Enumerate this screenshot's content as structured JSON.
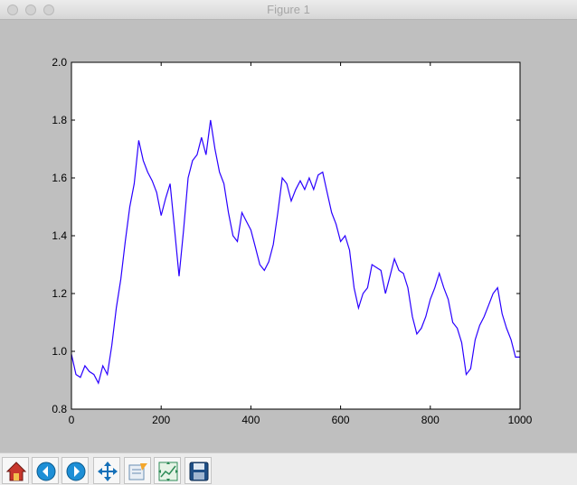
{
  "window": {
    "title": "Figure 1"
  },
  "toolbar": {
    "buttons": [
      {
        "name": "home-button",
        "icon": "home-icon"
      },
      {
        "name": "back-button",
        "icon": "back-arrow-icon"
      },
      {
        "name": "forward-button",
        "icon": "forward-arrow-icon"
      },
      {
        "name": "pan-button",
        "icon": "move-icon"
      },
      {
        "name": "zoom-button",
        "icon": "zoom-rect-icon"
      },
      {
        "name": "configure-subplots-button",
        "icon": "subplots-icon"
      },
      {
        "name": "save-button",
        "icon": "floppy-disk-icon"
      }
    ]
  },
  "colors": {
    "line": "#2a00ff",
    "figure_bg": "#bfbfbf",
    "axes_bg": "#ffffff"
  },
  "chart_data": {
    "type": "line",
    "xlim": [
      0,
      1000
    ],
    "ylim": [
      0.8,
      2.0
    ],
    "xticks": [
      "0",
      "200",
      "400",
      "600",
      "800",
      "1000"
    ],
    "yticks": [
      "0.8",
      "1.0",
      "1.2",
      "1.4",
      "1.6",
      "1.8",
      "2.0"
    ],
    "grid": false,
    "series": [
      {
        "x": [
          0,
          10,
          20,
          30,
          40,
          50,
          60,
          70,
          80,
          90,
          100,
          110,
          120,
          130,
          140,
          150,
          160,
          170,
          180,
          190,
          200,
          210,
          220,
          230,
          240,
          250,
          260,
          270,
          280,
          290,
          300,
          310,
          320,
          330,
          340,
          350,
          360,
          370,
          380,
          390,
          400,
          410,
          420,
          430,
          440,
          450,
          460,
          470,
          480,
          490,
          500,
          510,
          520,
          530,
          540,
          550,
          560,
          570,
          580,
          590,
          600,
          610,
          620,
          630,
          640,
          650,
          660,
          670,
          680,
          690,
          700,
          710,
          720,
          730,
          740,
          750,
          760,
          770,
          780,
          790,
          800,
          810,
          820,
          830,
          840,
          850,
          860,
          870,
          880,
          890,
          900,
          910,
          920,
          930,
          940,
          950,
          960,
          970,
          980,
          990,
          1000
        ],
        "y": [
          0.99,
          0.92,
          0.91,
          0.95,
          0.93,
          0.92,
          0.89,
          0.95,
          0.92,
          1.02,
          1.15,
          1.25,
          1.38,
          1.5,
          1.58,
          1.73,
          1.66,
          1.62,
          1.59,
          1.55,
          1.47,
          1.53,
          1.58,
          1.42,
          1.26,
          1.42,
          1.6,
          1.66,
          1.68,
          1.74,
          1.68,
          1.8,
          1.7,
          1.62,
          1.58,
          1.48,
          1.4,
          1.38,
          1.48,
          1.45,
          1.42,
          1.36,
          1.3,
          1.28,
          1.31,
          1.37,
          1.48,
          1.6,
          1.58,
          1.52,
          1.56,
          1.59,
          1.56,
          1.6,
          1.56,
          1.61,
          1.62,
          1.55,
          1.48,
          1.44,
          1.38,
          1.4,
          1.35,
          1.22,
          1.15,
          1.2,
          1.22,
          1.3,
          1.29,
          1.28,
          1.2,
          1.26,
          1.32,
          1.28,
          1.27,
          1.22,
          1.12,
          1.06,
          1.08,
          1.12,
          1.18,
          1.22,
          1.27,
          1.22,
          1.18,
          1.1,
          1.08,
          1.03,
          0.92,
          0.94,
          1.04,
          1.09,
          1.12,
          1.16,
          1.2,
          1.22,
          1.13,
          1.08,
          1.04,
          0.98,
          0.98
        ]
      }
    ]
  }
}
